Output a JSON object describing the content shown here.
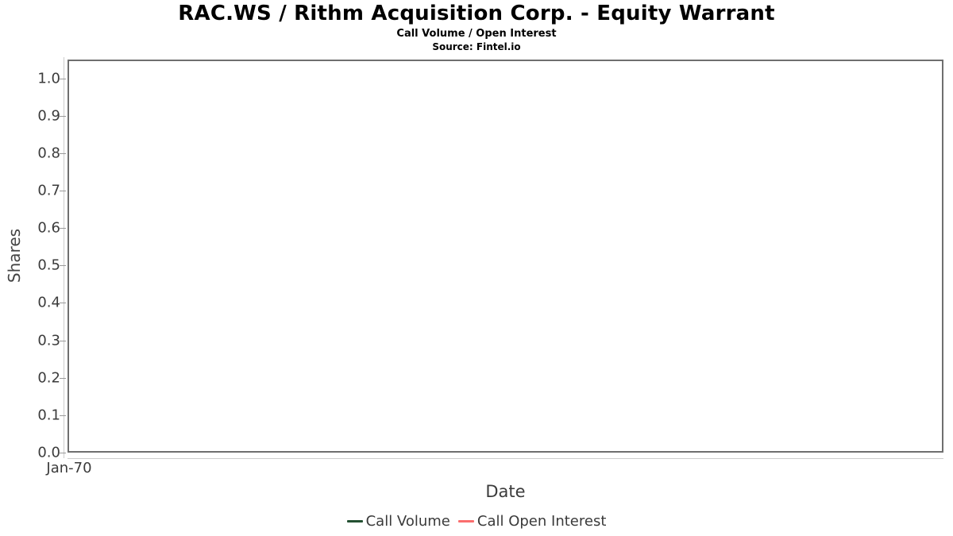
{
  "header": {
    "title": "RAC.WS / Rithm Acquisition Corp. - Equity Warrant",
    "subtitle": "Call Volume / Open Interest",
    "source": "Source: Fintel.io"
  },
  "chart_data": {
    "type": "line",
    "title": "RAC.WS / Rithm Acquisition Corp. - Equity Warrant",
    "subtitle": "Call Volume / Open Interest",
    "source_note": "Source: Fintel.io",
    "xlabel": "Date",
    "ylabel": "Shares",
    "grid": true,
    "legend_position": "bottom",
    "ylim": [
      0.0,
      1.05
    ],
    "yticks": [
      0.0,
      0.1,
      0.2,
      0.3,
      0.4,
      0.5,
      0.6,
      0.7,
      0.8,
      0.9,
      1.0
    ],
    "y_tick_labels": [
      "0.0",
      "0.1",
      "0.2",
      "0.3",
      "0.4",
      "0.5",
      "0.6",
      "0.7",
      "0.8",
      "0.9",
      "1.0"
    ],
    "x_tick_labels": [
      "Jan-70"
    ],
    "series": [
      {
        "name": "Call Volume",
        "color": "#235032",
        "x": [],
        "y": []
      },
      {
        "name": "Call Open Interest",
        "color": "#fa6e6e",
        "x": [],
        "y": []
      }
    ],
    "colors": {
      "plot_border": "#6f6f6f",
      "gridline": "#e6e6e6",
      "axis_line": "#cccccc",
      "tick_mark": "#999999",
      "tick_label_text": "#3b3b3b",
      "title_text": "#000000"
    }
  }
}
